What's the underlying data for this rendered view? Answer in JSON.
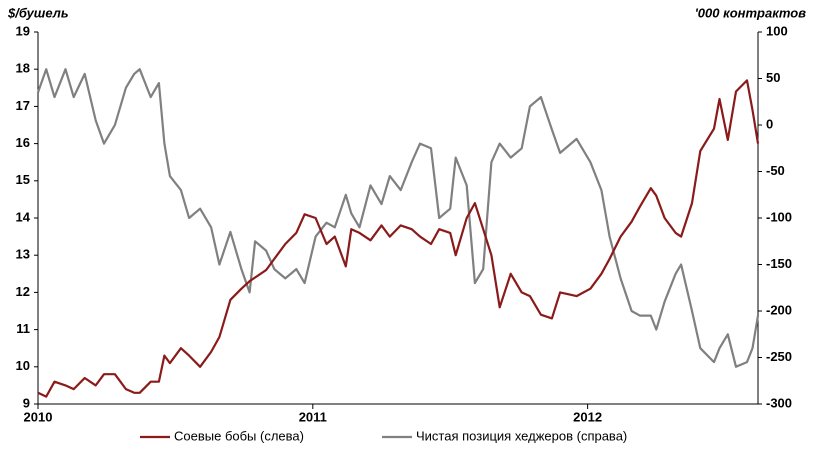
{
  "chart_data": {
    "type": "line",
    "y_label": "$/бушель",
    "y2_label": "'000 контрактов",
    "x": [
      2010.0,
      2010.03,
      2010.06,
      2010.1,
      2010.13,
      2010.17,
      2010.21,
      2010.24,
      2010.28,
      2010.32,
      2010.35,
      2010.37,
      2010.41,
      2010.44,
      2010.46,
      2010.48,
      2010.52,
      2010.55,
      2010.59,
      2010.63,
      2010.66,
      2010.7,
      2010.74,
      2010.77,
      2010.79,
      2010.83,
      2010.86,
      2010.9,
      2010.94,
      2010.97,
      2011.01,
      2011.05,
      2011.08,
      2011.12,
      2011.14,
      2011.17,
      2011.21,
      2011.25,
      2011.28,
      2011.32,
      2011.36,
      2011.39,
      2011.43,
      2011.46,
      2011.5,
      2011.52,
      2011.56,
      2011.59,
      2011.62,
      2011.65,
      2011.68,
      2011.72,
      2011.76,
      2011.79,
      2011.83,
      2011.87,
      2011.9,
      2011.96,
      2012.01,
      2012.05,
      2012.08,
      2012.12,
      2012.16,
      2012.19,
      2012.23,
      2012.25,
      2012.28,
      2012.32,
      2012.34,
      2012.38,
      2012.41,
      2012.46,
      2012.48,
      2012.51,
      2012.54,
      2012.58,
      2012.6,
      2012.62
    ],
    "series": [
      {
        "name": "Соевые бобы (слева)",
        "color": "#8b1a1a",
        "axis": "y",
        "values": [
          9.3,
          9.2,
          9.6,
          9.5,
          9.4,
          9.7,
          9.5,
          9.8,
          9.8,
          9.4,
          9.3,
          9.3,
          9.6,
          9.6,
          10.3,
          10.1,
          10.5,
          10.3,
          10.0,
          10.4,
          10.8,
          11.8,
          12.1,
          12.3,
          12.4,
          12.6,
          12.9,
          13.3,
          13.6,
          14.1,
          14.0,
          13.3,
          13.5,
          12.7,
          13.7,
          13.6,
          13.4,
          13.8,
          13.5,
          13.8,
          13.7,
          13.5,
          13.3,
          13.7,
          13.6,
          13.0,
          14.0,
          14.4,
          13.7,
          13.0,
          11.6,
          12.5,
          12.0,
          11.9,
          11.4,
          11.3,
          12.0,
          11.9,
          12.1,
          12.5,
          12.9,
          13.5,
          13.9,
          14.3,
          14.8,
          14.6,
          14.0,
          13.6,
          13.5,
          14.4,
          15.8,
          16.4,
          17.2,
          16.1,
          17.4,
          17.7,
          16.9,
          16.0
        ]
      },
      {
        "name": "Чистая позиция хеджеров (справа)",
        "color": "#808080",
        "axis": "y2",
        "values": [
          35,
          60,
          30,
          60,
          30,
          55,
          5,
          -20,
          0,
          40,
          55,
          60,
          30,
          45,
          -20,
          -55,
          -70,
          -100,
          -90,
          -110,
          -150,
          -115,
          -155,
          -180,
          -125,
          -135,
          -155,
          -165,
          -155,
          -170,
          -120,
          -105,
          -110,
          -75,
          -95,
          -110,
          -65,
          -85,
          -55,
          -70,
          -40,
          -20,
          -25,
          -100,
          -90,
          -35,
          -65,
          -170,
          -155,
          -40,
          -20,
          -35,
          -25,
          20,
          30,
          -5,
          -30,
          -15,
          -40,
          -70,
          -120,
          -165,
          -200,
          -205,
          -205,
          -220,
          -190,
          -160,
          -150,
          -200,
          -240,
          -255,
          -240,
          -225,
          -260,
          -255,
          -240,
          -205
        ]
      }
    ],
    "xlim": [
      2010,
      2012.62
    ],
    "xticks": [
      2010,
      2011,
      2012
    ],
    "ylim": [
      9,
      19
    ],
    "yticks": [
      9,
      10,
      11,
      12,
      13,
      14,
      15,
      16,
      17,
      18,
      19
    ],
    "y2lim": [
      -300,
      100
    ],
    "y2ticks": [
      -300,
      -250,
      -200,
      -150,
      -100,
      -50,
      0,
      50,
      100
    ],
    "grid": false,
    "legend": "bottom"
  }
}
